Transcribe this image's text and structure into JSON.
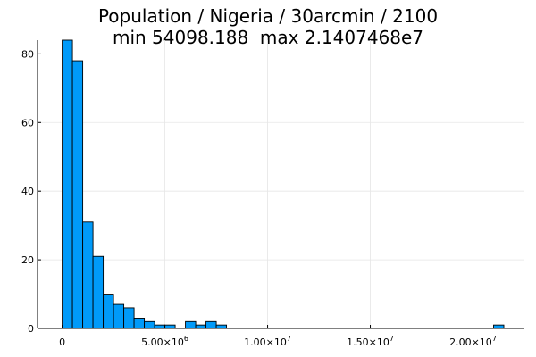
{
  "chart_data": {
    "type": "bar",
    "title_line1": "Population / Nigeria / 30arcmin / 2100",
    "title_line2": "min 54098.188  max 2.1407468e7",
    "xlabel": "",
    "ylabel": "",
    "legend": "none",
    "grid": true,
    "xlim": [
      -1200000.0,
      22500000.0
    ],
    "ylim": [
      0,
      84
    ],
    "x_ticks": [
      {
        "value": 0,
        "label": "0",
        "exp": ""
      },
      {
        "value": 5000000,
        "label": "5.00×10",
        "exp": "6"
      },
      {
        "value": 10000000,
        "label": "1.00×10",
        "exp": "7"
      },
      {
        "value": 15000000,
        "label": "1.50×10",
        "exp": "7"
      },
      {
        "value": 20000000,
        "label": "2.00×10",
        "exp": "7"
      }
    ],
    "y_ticks": [
      0,
      20,
      40,
      60,
      80
    ],
    "bin_width": 500000,
    "bins": [
      {
        "start": 0,
        "count": 84
      },
      {
        "start": 500000,
        "count": 78
      },
      {
        "start": 1000000,
        "count": 31
      },
      {
        "start": 1500000,
        "count": 21
      },
      {
        "start": 2000000,
        "count": 10
      },
      {
        "start": 2500000,
        "count": 7
      },
      {
        "start": 3000000,
        "count": 6
      },
      {
        "start": 3500000,
        "count": 3
      },
      {
        "start": 4000000,
        "count": 2
      },
      {
        "start": 4500000,
        "count": 1
      },
      {
        "start": 5000000,
        "count": 1
      },
      {
        "start": 6000000,
        "count": 2
      },
      {
        "start": 6500000,
        "count": 1
      },
      {
        "start": 7000000,
        "count": 2
      },
      {
        "start": 7500000,
        "count": 1
      },
      {
        "start": 21000000,
        "count": 1
      }
    ],
    "colors": {
      "bar": "#009af9",
      "edge": "#000000",
      "grid": "#e6e6e6",
      "axis": "#000000"
    }
  }
}
